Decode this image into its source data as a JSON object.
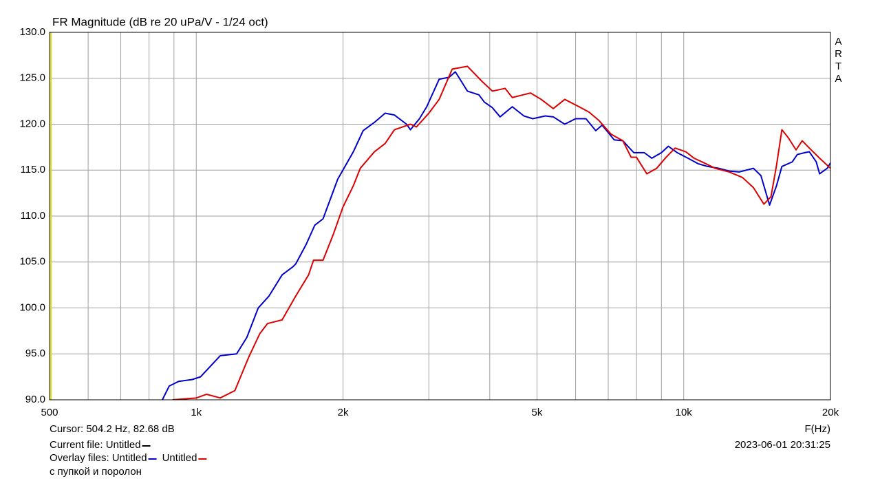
{
  "chart_data": {
    "type": "line",
    "title": "FR Magnitude (dB re 20 uPa/V - 1/24 oct)",
    "watermark": "ARTA",
    "x_label": "F(Hz)",
    "xscale": "log",
    "grid": true,
    "xlim": [
      500,
      20000
    ],
    "ylim": [
      90,
      130
    ],
    "xticks": [
      500,
      {
        "value": 1000,
        "label": "1k"
      },
      {
        "value": 2000,
        "label": "2k"
      },
      {
        "value": 5000,
        "label": "5k"
      },
      {
        "value": 10000,
        "label": "10k"
      },
      {
        "value": 20000,
        "label": "20k"
      }
    ],
    "xminor_ticks": [
      600,
      700,
      800,
      900,
      3000,
      4000,
      6000,
      7000,
      8000,
      9000
    ],
    "yticks": [
      {
        "value": 90,
        "label": "90.0"
      },
      {
        "value": 95,
        "label": "95.0"
      },
      {
        "value": 100,
        "label": "100.0"
      },
      {
        "value": 105,
        "label": "105.0"
      },
      {
        "value": 110,
        "label": "110.0"
      },
      {
        "value": 115,
        "label": "115.0"
      },
      {
        "value": 120,
        "label": "120.0"
      },
      {
        "value": 125,
        "label": "125.0"
      },
      {
        "value": 130,
        "label": "130.0"
      }
    ],
    "cursor": "Cursor: 504.2 Hz, 82.68 dB",
    "current_file": "Current file: Untitled",
    "overlay_label": "Overlay files:",
    "date": "2023-06-01  20:31:25",
    "note": "с пупкой и поролон",
    "series": [
      {
        "name": "Untitled",
        "color": "#0000cc",
        "x": [
          852,
          880,
          920,
          980,
          1020,
          1120,
          1210,
          1270,
          1340,
          1410,
          1500,
          1580,
          1600,
          1680,
          1750,
          1820,
          1950,
          2100,
          2200,
          2320,
          2440,
          2550,
          2700,
          2750,
          2870,
          2970,
          3150,
          3300,
          3400,
          3600,
          3800,
          3900,
          4050,
          4200,
          4450,
          4700,
          4900,
          5200,
          5400,
          5700,
          6000,
          6300,
          6600,
          6800,
          7200,
          7500,
          7900,
          8300,
          8600,
          9000,
          9300,
          9700,
          10200,
          10700,
          11200,
          11800,
          12400,
          13000,
          13900,
          14400,
          15000,
          15500,
          15900,
          16700,
          17100,
          17700,
          18100,
          18700,
          19000,
          19700,
          20000
        ],
        "values": [
          90.0,
          91.5,
          92.0,
          92.2,
          92.5,
          94.8,
          95.0,
          96.8,
          100.0,
          101.3,
          103.6,
          104.5,
          104.8,
          106.9,
          109.0,
          109.7,
          114.0,
          117.0,
          119.3,
          120.2,
          121.2,
          121.0,
          120.0,
          119.4,
          120.6,
          121.9,
          124.9,
          125.1,
          125.7,
          123.6,
          123.2,
          122.4,
          121.8,
          120.8,
          121.9,
          120.9,
          120.6,
          120.9,
          120.8,
          120.0,
          120.6,
          120.6,
          119.3,
          119.9,
          118.3,
          118.2,
          116.9,
          116.9,
          116.3,
          116.9,
          117.6,
          116.9,
          116.3,
          115.7,
          115.4,
          115.2,
          114.9,
          114.8,
          115.2,
          114.4,
          111.2,
          113.3,
          115.4,
          115.9,
          116.7,
          116.9,
          117.0,
          115.9,
          114.6,
          115.2,
          115.8
        ]
      },
      {
        "name": "Untitled",
        "color": "#dd0000",
        "x": [
          894,
          1000,
          1050,
          1120,
          1200,
          1280,
          1350,
          1400,
          1500,
          1600,
          1700,
          1740,
          1820,
          1910,
          2000,
          2100,
          2170,
          2320,
          2440,
          2550,
          2750,
          2830,
          3000,
          3150,
          3350,
          3600,
          3850,
          4050,
          4300,
          4450,
          4850,
          5100,
          5400,
          5700,
          6100,
          6400,
          6700,
          7100,
          7500,
          7800,
          8000,
          8400,
          8800,
          9200,
          9600,
          10100,
          10500,
          11000,
          11600,
          12400,
          13200,
          13900,
          14600,
          15100,
          15500,
          15900,
          16400,
          17000,
          17500,
          18100,
          19000,
          20000
        ],
        "values": [
          90.0,
          90.2,
          90.6,
          90.2,
          91.0,
          94.6,
          97.2,
          98.3,
          98.7,
          101.3,
          103.6,
          105.2,
          105.2,
          108.0,
          111.0,
          113.3,
          115.2,
          117.0,
          117.9,
          119.4,
          120.0,
          119.7,
          121.2,
          122.7,
          126.0,
          126.3,
          124.7,
          123.6,
          123.9,
          122.9,
          123.4,
          122.7,
          121.7,
          122.7,
          121.9,
          121.3,
          120.4,
          118.9,
          118.2,
          116.4,
          116.4,
          114.6,
          115.2,
          116.4,
          117.4,
          117.0,
          116.3,
          115.8,
          115.2,
          114.8,
          114.2,
          113.1,
          111.3,
          112.1,
          115.5,
          119.4,
          118.5,
          117.2,
          118.2,
          117.4,
          116.3,
          115.2
        ]
      }
    ]
  }
}
